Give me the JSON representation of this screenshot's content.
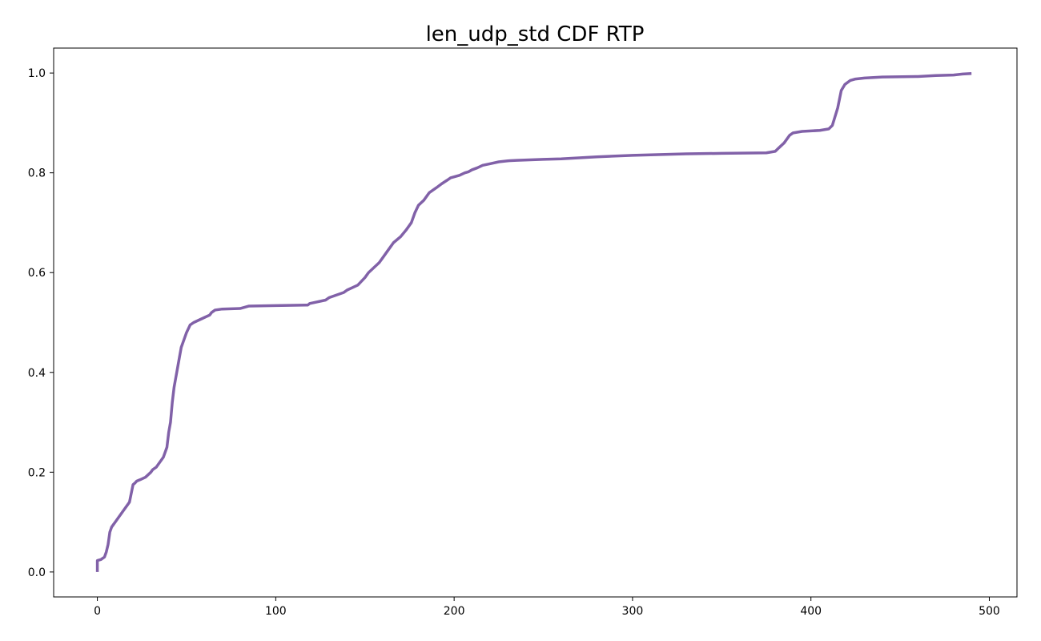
{
  "chart_data": {
    "type": "line",
    "title": "len_udp_std CDF RTP",
    "xlabel": "",
    "ylabel": "",
    "xlim": [
      -24.5,
      515.5
    ],
    "ylim": [
      -0.05,
      1.05
    ],
    "xticks": [
      0,
      100,
      200,
      300,
      400,
      500
    ],
    "yticks": [
      0.0,
      0.2,
      0.4,
      0.6,
      0.8,
      1.0
    ],
    "xtick_labels": [
      "0",
      "100",
      "200",
      "300",
      "400",
      "500"
    ],
    "ytick_labels": [
      "0.0",
      "0.2",
      "0.4",
      "0.6",
      "0.8",
      "1.0"
    ],
    "grid": false,
    "legend": "none",
    "series": [
      {
        "color": "#8161a8",
        "x": [
          0,
          0,
          2,
          4,
          5,
          6,
          7,
          8,
          9,
          10,
          12,
          14,
          15,
          17,
          18,
          20,
          21,
          21.5,
          22,
          24,
          27,
          30,
          31,
          33,
          35,
          37,
          39,
          40,
          41,
          42,
          43,
          44,
          45,
          46,
          47,
          48,
          50,
          52,
          54,
          57,
          60,
          63,
          64,
          66,
          70,
          80,
          85,
          100,
          118,
          119,
          128,
          130,
          134,
          138,
          140,
          143,
          146,
          150,
          152,
          155,
          158,
          160,
          163,
          166,
          170,
          173,
          176,
          178,
          180,
          183,
          186,
          190,
          193,
          196,
          198,
          200,
          203,
          206,
          208,
          210,
          213,
          216,
          220,
          225,
          230,
          235,
          250,
          260,
          280,
          300,
          330,
          350,
          375,
          380,
          382,
          385,
          388,
          390,
          395,
          405,
          410,
          412,
          415,
          417,
          419,
          422,
          425,
          430,
          440,
          460,
          470,
          480,
          485,
          490
        ],
        "y": [
          0.0,
          0.023,
          0.025,
          0.03,
          0.04,
          0.055,
          0.08,
          0.09,
          0.095,
          0.1,
          0.11,
          0.12,
          0.125,
          0.135,
          0.14,
          0.175,
          0.178,
          0.18,
          0.182,
          0.185,
          0.19,
          0.2,
          0.205,
          0.21,
          0.22,
          0.23,
          0.25,
          0.28,
          0.3,
          0.34,
          0.37,
          0.39,
          0.41,
          0.43,
          0.45,
          0.46,
          0.48,
          0.495,
          0.5,
          0.505,
          0.51,
          0.515,
          0.52,
          0.525,
          0.527,
          0.528,
          0.533,
          0.534,
          0.535,
          0.538,
          0.545,
          0.55,
          0.555,
          0.56,
          0.565,
          0.57,
          0.575,
          0.59,
          0.6,
          0.61,
          0.62,
          0.63,
          0.645,
          0.66,
          0.672,
          0.685,
          0.7,
          0.72,
          0.735,
          0.745,
          0.76,
          0.77,
          0.778,
          0.785,
          0.79,
          0.792,
          0.795,
          0.8,
          0.802,
          0.806,
          0.81,
          0.815,
          0.818,
          0.822,
          0.824,
          0.825,
          0.827,
          0.828,
          0.832,
          0.835,
          0.838,
          0.839,
          0.84,
          0.843,
          0.85,
          0.86,
          0.875,
          0.88,
          0.883,
          0.885,
          0.888,
          0.895,
          0.93,
          0.965,
          0.977,
          0.985,
          0.988,
          0.99,
          0.992,
          0.993,
          0.995,
          0.996,
          0.998,
          0.999
        ]
      }
    ]
  }
}
